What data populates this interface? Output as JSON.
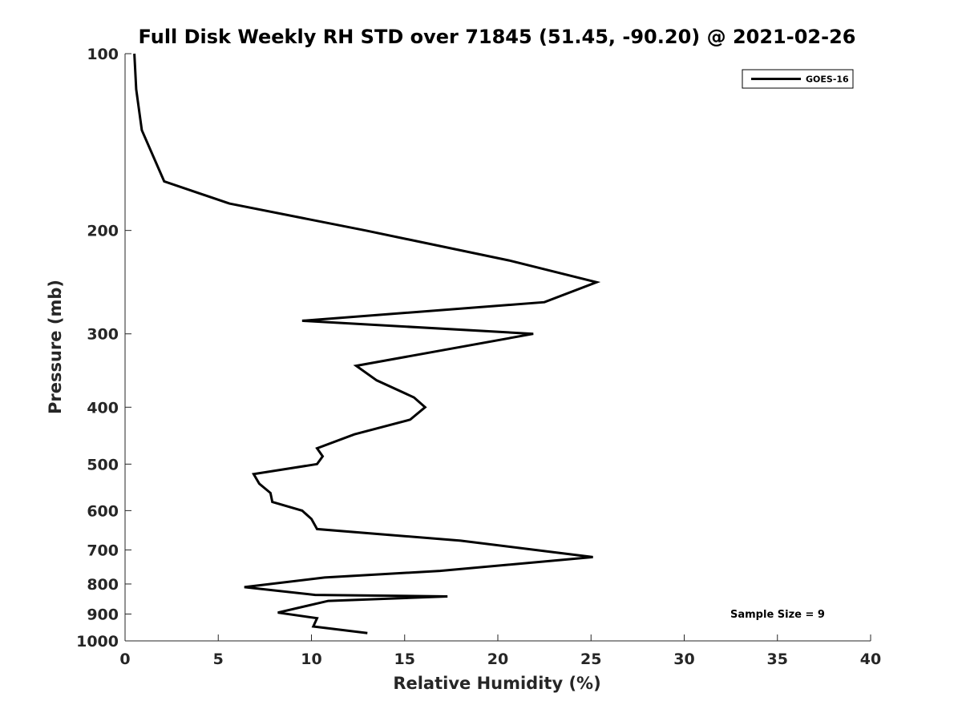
{
  "chart_data": {
    "type": "line",
    "title": "Full Disk Weekly RH STD over 71845 (51.45, -90.20) @ 2021-02-26",
    "xlabel": "Relative Humidity (%)",
    "ylabel": "Pressure (mb)",
    "xlim": [
      0,
      40
    ],
    "ylim": [
      100,
      1000
    ],
    "y_scale": "log",
    "y_direction": "reversed",
    "xticks": [
      "0",
      "5",
      "10",
      "15",
      "20",
      "25",
      "30",
      "35",
      "40"
    ],
    "yticks": [
      "100",
      "200",
      "300",
      "400",
      "500",
      "600",
      "700",
      "800",
      "900",
      "1000"
    ],
    "grid": false,
    "legend_position": "top-right",
    "annotation": "Sample Size = 9",
    "series": [
      {
        "name": "GOES-16",
        "color": "#000000",
        "x": [
          0.5,
          0.6,
          0.9,
          2.1,
          5.6,
          12.9,
          20.6,
          25.3,
          22.5,
          9.5,
          21.9,
          12.4,
          13.5,
          15.5,
          16.1,
          15.3,
          12.3,
          10.3,
          10.6,
          10.3,
          6.9,
          7.2,
          7.8,
          7.9,
          9.5,
          10.0,
          10.3,
          18.0,
          22.8,
          25.1,
          16.9,
          10.7,
          6.4,
          10.2,
          17.3,
          10.9,
          8.2,
          10.3,
          10.1,
          13.0
        ],
        "y": [
          100,
          115,
          135,
          165,
          180,
          200,
          225,
          245,
          265,
          285,
          300,
          340,
          360,
          385,
          400,
          420,
          445,
          470,
          485,
          500,
          520,
          540,
          560,
          580,
          600,
          620,
          645,
          675,
          705,
          720,
          760,
          780,
          810,
          835,
          840,
          855,
          895,
          915,
          945,
          970
        ]
      }
    ]
  }
}
